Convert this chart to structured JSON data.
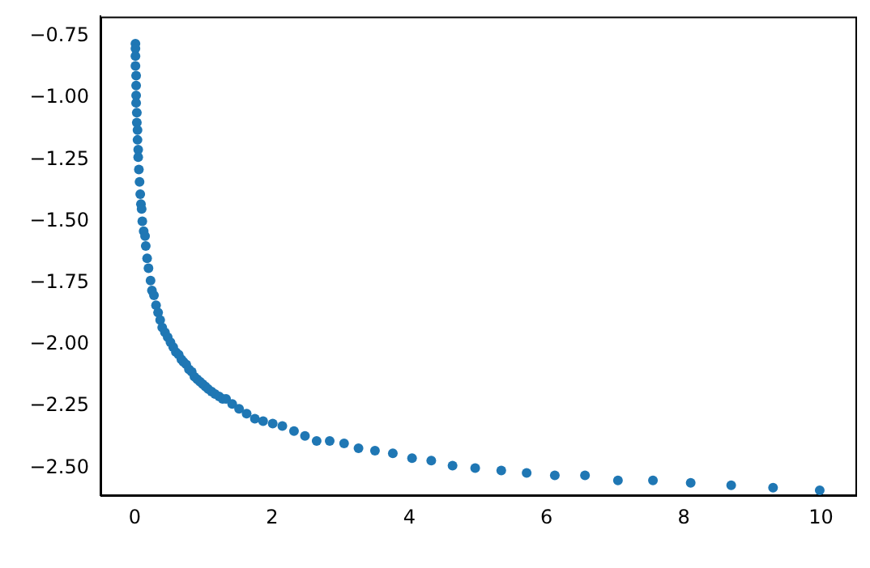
{
  "chart_data": {
    "type": "scatter",
    "marker": "circle",
    "grid": false,
    "legend": false,
    "xlim": [
      -0.5,
      10.5
    ],
    "ylim": [
      -2.61,
      -0.67
    ],
    "xticks": [
      0,
      2,
      4,
      6,
      8,
      10
    ],
    "yticks": [
      {
        "value": -0.75,
        "label": "−0.75"
      },
      {
        "value": -1.0,
        "label": "−1.00"
      },
      {
        "value": -1.25,
        "label": "−1.25"
      },
      {
        "value": -1.5,
        "label": "−1.50"
      },
      {
        "value": -1.75,
        "label": "−1.75"
      },
      {
        "value": -2.0,
        "label": "−2.00"
      },
      {
        "value": -2.25,
        "label": "−2.25"
      },
      {
        "value": -2.5,
        "label": "−2.50"
      }
    ],
    "series": [
      {
        "color": "#1f77b4",
        "x": [
          0.01,
          0.01,
          0.01,
          0.01,
          0.02,
          0.02,
          0.02,
          0.02,
          0.03,
          0.03,
          0.04,
          0.04,
          0.05,
          0.05,
          0.06,
          0.07,
          0.08,
          0.09,
          0.1,
          0.11,
          0.13,
          0.15,
          0.16,
          0.18,
          0.2,
          0.23,
          0.25,
          0.28,
          0.31,
          0.34,
          0.37,
          0.4,
          0.44,
          0.48,
          0.52,
          0.56,
          0.6,
          0.64,
          0.68,
          0.71,
          0.75,
          0.79,
          0.83,
          0.87,
          0.91,
          0.95,
          0.99,
          1.03,
          1.07,
          1.12,
          1.17,
          1.23,
          1.28,
          1.33,
          1.42,
          1.52,
          1.63,
          1.75,
          1.87,
          2.01,
          2.15,
          2.32,
          2.48,
          2.65,
          2.84,
          3.05,
          3.26,
          3.5,
          3.76,
          4.04,
          4.32,
          4.63,
          4.96,
          5.34,
          5.71,
          6.12,
          6.56,
          7.04,
          7.55,
          8.1,
          8.69,
          9.3,
          9.98
        ],
        "values": [
          -0.78,
          -0.8,
          -0.83,
          -0.87,
          -0.91,
          -0.95,
          -0.99,
          -1.02,
          -1.06,
          -1.1,
          -1.13,
          -1.17,
          -1.21,
          -1.24,
          -1.29,
          -1.34,
          -1.39,
          -1.43,
          -1.45,
          -1.5,
          -1.54,
          -1.56,
          -1.6,
          -1.65,
          -1.69,
          -1.74,
          -1.78,
          -1.8,
          -1.84,
          -1.87,
          -1.9,
          -1.93,
          -1.95,
          -1.97,
          -1.99,
          -2.01,
          -2.03,
          -2.04,
          -2.06,
          -2.07,
          -2.08,
          -2.1,
          -2.11,
          -2.13,
          -2.14,
          -2.15,
          -2.16,
          -2.17,
          -2.18,
          -2.19,
          -2.2,
          -2.21,
          -2.22,
          -2.22,
          -2.24,
          -2.26,
          -2.28,
          -2.3,
          -2.31,
          -2.32,
          -2.33,
          -2.35,
          -2.37,
          -2.39,
          -2.39,
          -2.4,
          -2.42,
          -2.43,
          -2.44,
          -2.46,
          -2.47,
          -2.49,
          -2.5,
          -2.51,
          -2.52,
          -2.53,
          -2.53,
          -2.55,
          -2.55,
          -2.56,
          -2.57,
          -2.58,
          -2.59
        ]
      }
    ]
  }
}
